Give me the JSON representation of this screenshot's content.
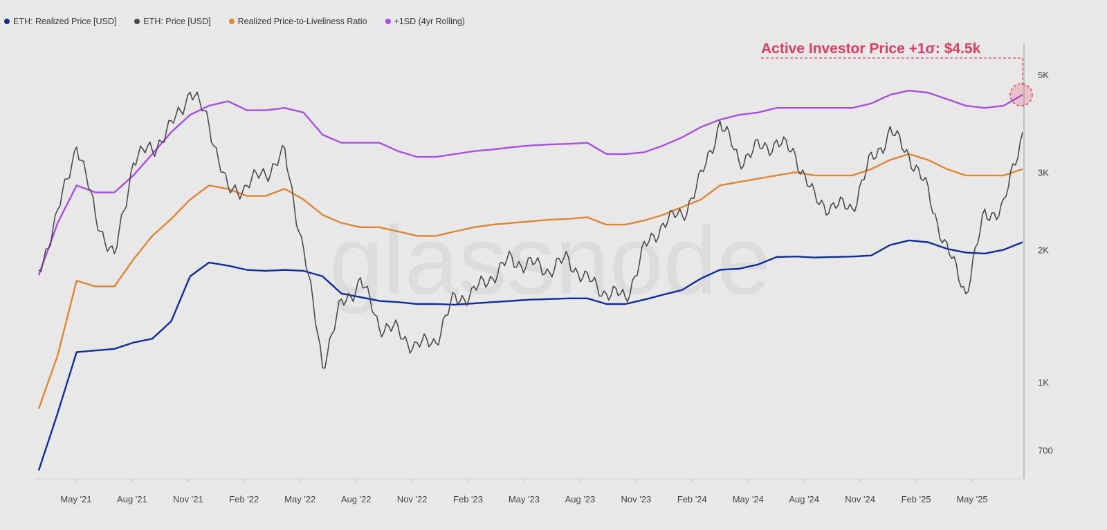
{
  "legend": [
    {
      "label": "ETH: Realized Price [USD]",
      "color": "#0b2aa5"
    },
    {
      "label": "ETH: Price [USD]",
      "color": "#4a4a4a"
    },
    {
      "label": "Realized Price-to-Liveliness Ratio",
      "color": "#e0852f"
    },
    {
      "label": "+1SD (4yr Rolling)",
      "color": "#a64ee6"
    }
  ],
  "annotation": {
    "text": "Active Investor Price +1σ: $4.5k",
    "color": "#e23b62",
    "value": 4500
  },
  "watermark": "glassnode",
  "chart_data": {
    "type": "line",
    "yscale": "log",
    "ylim": [
      600,
      5600
    ],
    "start_month": "2021-03",
    "step": "1 month",
    "x_tick_labels": [
      "May '21",
      "Aug '21",
      "Nov '21",
      "Feb '22",
      "May '22",
      "Aug '22",
      "Nov '22",
      "Feb '23",
      "May '23",
      "Aug '23",
      "Nov '23",
      "Feb '24",
      "May '24",
      "Aug '24",
      "Nov '24",
      "Feb '25",
      "May '25"
    ],
    "y_ticks": [
      {
        "value": 700,
        "label": "700"
      },
      {
        "value": 1000,
        "label": "1K"
      },
      {
        "value": 2000,
        "label": "2K"
      },
      {
        "value": 3000,
        "label": "3K"
      },
      {
        "value": 5000,
        "label": "5K"
      }
    ],
    "series": [
      {
        "name": "ETH: Realized Price [USD]",
        "color": "#0b2aa5",
        "values": [
          630,
          850,
          1170,
          1180,
          1190,
          1230,
          1255,
          1375,
          1740,
          1870,
          1840,
          1800,
          1790,
          1800,
          1790,
          1740,
          1590,
          1560,
          1530,
          1520,
          1505,
          1505,
          1500,
          1510,
          1520,
          1530,
          1540,
          1545,
          1550,
          1550,
          1505,
          1505,
          1540,
          1580,
          1620,
          1720,
          1800,
          1810,
          1850,
          1925,
          1930,
          1920,
          1925,
          1930,
          1940,
          2050,
          2100,
          2080,
          2010,
          1970,
          1960,
          2000,
          2080
        ]
      },
      {
        "name": "ETH: Price [USD]",
        "color": "#4a4a4a",
        "values": [
          1800,
          2400,
          3500,
          2400,
          1900,
          3200,
          3400,
          3800,
          4600,
          3900,
          2700,
          2800,
          3000,
          3300,
          2000,
          1100,
          1500,
          1700,
          1350,
          1300,
          1200,
          1250,
          1550,
          1600,
          1750,
          1900,
          1850,
          1800,
          1900,
          1700,
          1600,
          1550,
          2000,
          2300,
          2400,
          2900,
          3900,
          3200,
          3400,
          3500,
          3300,
          2600,
          2500,
          2500,
          3200,
          3700,
          3300,
          2700,
          2000,
          1600,
          2400,
          2500,
          3700
        ]
      },
      {
        "name": "Realized Price-to-Liveliness Ratio",
        "color": "#e0852f",
        "values": [
          870,
          1150,
          1700,
          1650,
          1650,
          1900,
          2150,
          2350,
          2600,
          2800,
          2750,
          2650,
          2650,
          2750,
          2600,
          2400,
          2300,
          2250,
          2250,
          2200,
          2150,
          2150,
          2200,
          2250,
          2280,
          2300,
          2320,
          2340,
          2350,
          2370,
          2280,
          2280,
          2330,
          2400,
          2500,
          2600,
          2800,
          2850,
          2900,
          2950,
          3000,
          2950,
          2950,
          2950,
          3050,
          3200,
          3300,
          3200,
          3050,
          2950,
          2950,
          2950,
          3050
        ]
      },
      {
        "name": "+1SD (4yr Rolling)",
        "color": "#a64ee6",
        "values": [
          1750,
          2300,
          2800,
          2700,
          2700,
          2950,
          3300,
          3700,
          4050,
          4250,
          4350,
          4150,
          4150,
          4200,
          4100,
          3650,
          3500,
          3500,
          3500,
          3350,
          3250,
          3250,
          3300,
          3350,
          3380,
          3420,
          3450,
          3470,
          3480,
          3500,
          3300,
          3300,
          3330,
          3450,
          3600,
          3800,
          3950,
          4050,
          4100,
          4200,
          4200,
          4200,
          4200,
          4200,
          4300,
          4500,
          4600,
          4550,
          4400,
          4250,
          4200,
          4250,
          4500
        ]
      }
    ]
  }
}
